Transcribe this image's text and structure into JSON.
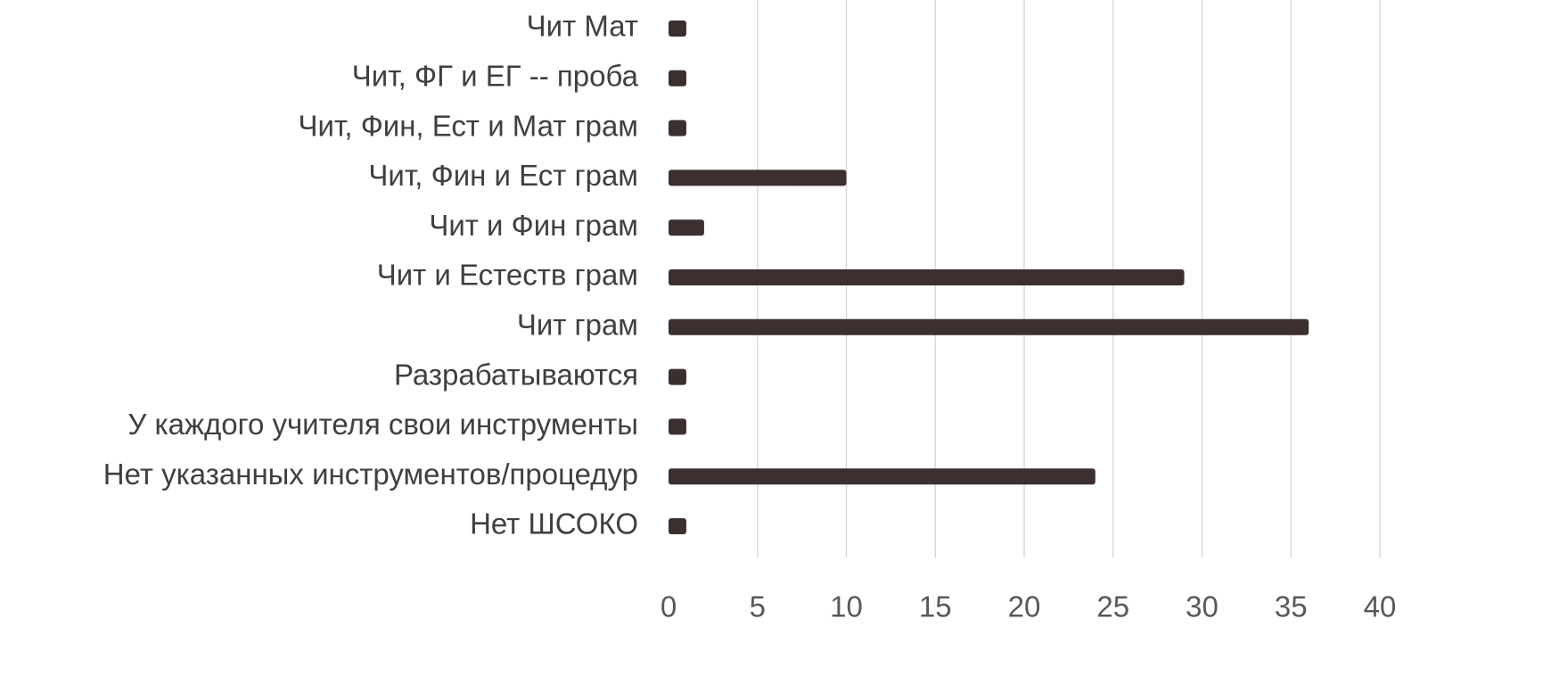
{
  "chart_data": {
    "type": "bar",
    "orientation": "horizontal",
    "categories": [
      "Нет ШСОКО",
      "Нет указанных инструментов/процедур",
      "У каждого учителя свои инструменты",
      "Разрабатываются",
      "Чит грам",
      "Чит и Естеств грам",
      "Чит и Фин грам",
      "Чит, Фин и Ест грам",
      "Чит, Фин, Ест и Мат грам",
      "Чит, ФГ и ЕГ -- проба",
      "Чит Мат"
    ],
    "values": [
      1,
      24,
      1,
      1,
      36,
      29,
      2,
      10,
      1,
      1,
      1
    ],
    "xlim": [
      0,
      40
    ],
    "xticks": [
      "0",
      "5",
      "10",
      "15",
      "20",
      "25",
      "30",
      "35",
      "40"
    ],
    "title": "",
    "xlabel": "",
    "ylabel": "",
    "grid": "vertical",
    "legend": "none",
    "bar_color": "#3b2f30",
    "grid_color": "#d9d9d9",
    "label_color": "#3f3f3f"
  }
}
